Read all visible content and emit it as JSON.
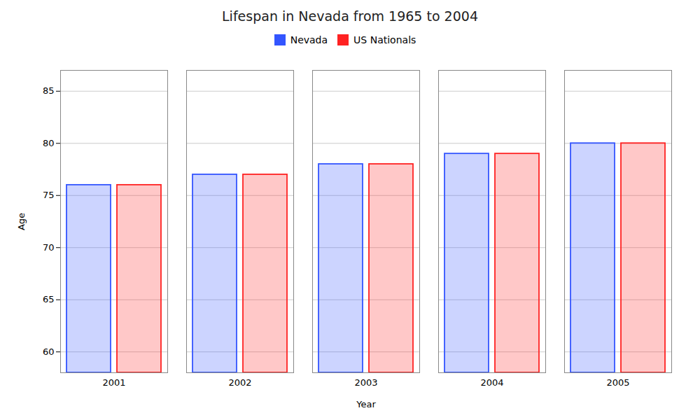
{
  "chart_data": {
    "type": "bar",
    "title": "Lifespan in Nevada from 1965 to 2004",
    "xlabel": "Year",
    "ylabel": "Age",
    "categories": [
      "2001",
      "2002",
      "2003",
      "2004",
      "2005"
    ],
    "series": [
      {
        "name": "Nevada",
        "color": "#3355ff",
        "values": [
          76,
          77,
          78,
          79,
          80
        ]
      },
      {
        "name": "US Nationals",
        "color": "#ff2222",
        "values": [
          76,
          77,
          78,
          79,
          80
        ]
      }
    ],
    "ylim": [
      58,
      87
    ],
    "yticks": [
      60,
      65,
      70,
      75,
      80,
      85
    ],
    "grid": true,
    "legend": "top"
  }
}
